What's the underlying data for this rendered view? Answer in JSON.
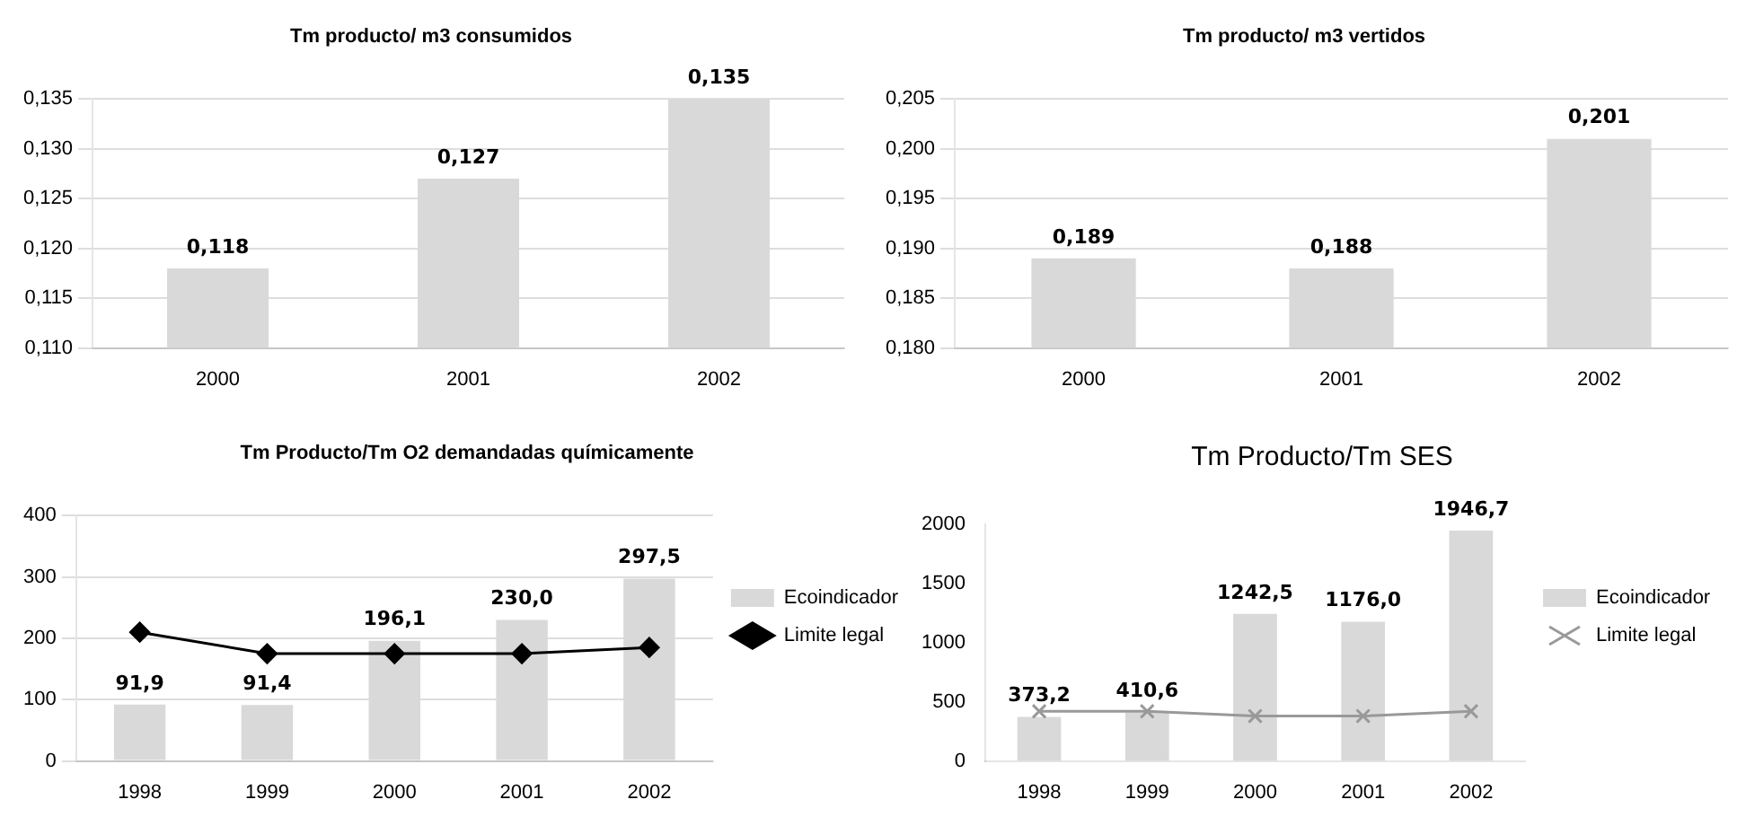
{
  "chart_data": [
    {
      "type": "bar",
      "title": "Tm producto/ m3 consumidos",
      "categories": [
        "2000",
        "2001",
        "2002"
      ],
      "values": [
        0.118,
        0.127,
        0.135
      ],
      "value_labels": [
        "0,118",
        "0,127",
        "0,135"
      ],
      "color": "#d9d9d9",
      "ylim": [
        0.11,
        0.135
      ],
      "yticks": [
        {
          "value": 0.11,
          "label": "0,110"
        },
        {
          "value": 0.115,
          "label": "0,115"
        },
        {
          "value": 0.12,
          "label": "0,120"
        },
        {
          "value": 0.125,
          "label": "0,125"
        },
        {
          "value": 0.13,
          "label": "0,130"
        },
        {
          "value": 0.135,
          "label": "0,135"
        }
      ],
      "grid": "y",
      "legend": false
    },
    {
      "type": "bar",
      "title": "Tm producto/ m3 vertidos",
      "categories": [
        "2000",
        "2001",
        "2002"
      ],
      "values": [
        0.189,
        0.188,
        0.201
      ],
      "value_labels": [
        "0,189",
        "0,188",
        "0,201"
      ],
      "color": "#d9d9d9",
      "ylim": [
        0.18,
        0.205
      ],
      "yticks": [
        {
          "value": 0.18,
          "label": "0,180"
        },
        {
          "value": 0.185,
          "label": "0,185"
        },
        {
          "value": 0.19,
          "label": "0,190"
        },
        {
          "value": 0.195,
          "label": "0,195"
        },
        {
          "value": 0.2,
          "label": "0,200"
        },
        {
          "value": 0.205,
          "label": "0,205"
        }
      ],
      "grid": "y",
      "legend": false
    },
    {
      "type": "bar",
      "title": "Tm Producto/Tm O2 demandadas químicamente",
      "categories": [
        "1998",
        "1999",
        "2000",
        "2001",
        "2002"
      ],
      "ylim": [
        0,
        400
      ],
      "yticks": [
        0,
        100,
        200,
        300,
        400
      ],
      "grid": "y",
      "legend": "right",
      "series": [
        {
          "name": "Ecoindicador",
          "type": "bar",
          "color": "#d9d9d9",
          "values": [
            91.9,
            91.4,
            196.1,
            230.0,
            297.5
          ],
          "value_labels": [
            "91,9",
            "91,4",
            "196,1",
            "230,0",
            "297,5"
          ]
        },
        {
          "name": "Limite legal",
          "type": "line",
          "color": "#000000",
          "marker": "diamond",
          "values": [
            210,
            175,
            175,
            175,
            185
          ]
        }
      ]
    },
    {
      "type": "bar",
      "title": "Tm Producto/Tm SES",
      "categories": [
        "1998",
        "1999",
        "2000",
        "2001",
        "2002"
      ],
      "ylim": [
        0,
        2000
      ],
      "yticks": [
        0,
        500,
        1000,
        1500,
        2000
      ],
      "grid": false,
      "legend": "right",
      "series": [
        {
          "name": "Ecoindicador",
          "type": "bar",
          "color": "#d9d9d9",
          "values": [
            373.2,
            410.6,
            1242.5,
            1176.0,
            1946.7
          ],
          "value_labels": [
            "373,2",
            "410,6",
            "1242,5",
            "1176,0",
            "1946,7"
          ]
        },
        {
          "name": "Limite legal",
          "type": "line",
          "color": "#999999",
          "marker": "cross",
          "values": [
            420,
            420,
            380,
            380,
            420
          ]
        }
      ]
    }
  ]
}
